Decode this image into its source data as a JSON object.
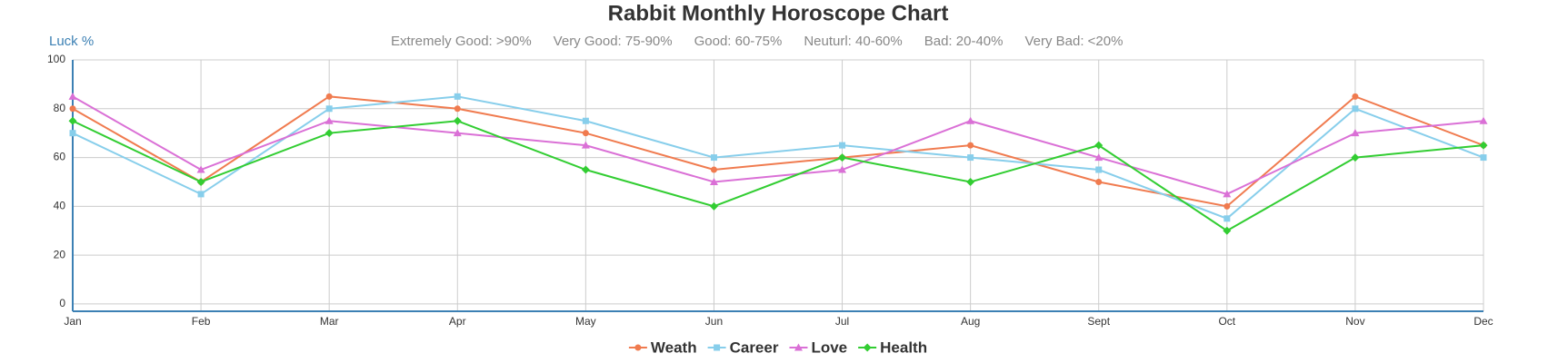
{
  "chart_data": {
    "type": "line",
    "title": "Rabbit Monthly Horoscope Chart",
    "y_label": "Luck %",
    "notes": [
      "Extremely Good: >90%",
      "Very Good: 75-90%",
      "Good: 60-75%",
      "Neuturl: 40-60%",
      "Bad: 20-40%",
      "Very Bad: <20%"
    ],
    "categories": [
      "Jan",
      "Feb",
      "Mar",
      "Apr",
      "May",
      "Jun",
      "Jul",
      "Aug",
      "Sept",
      "Oct",
      "Nov",
      "Dec"
    ],
    "series": [
      {
        "name": "Weath",
        "color": "#f07b4f",
        "marker": "circle",
        "values": [
          80,
          50,
          85,
          80,
          70,
          55,
          60,
          65,
          50,
          40,
          85,
          65
        ]
      },
      {
        "name": "Career",
        "color": "#87ceeb",
        "marker": "square",
        "values": [
          70,
          45,
          80,
          85,
          75,
          60,
          65,
          60,
          55,
          35,
          80,
          60
        ]
      },
      {
        "name": "Love",
        "color": "#da70d6",
        "marker": "triangle",
        "values": [
          85,
          55,
          75,
          70,
          65,
          50,
          55,
          75,
          60,
          45,
          70,
          75
        ]
      },
      {
        "name": "Health",
        "color": "#32cd32",
        "marker": "diamond",
        "values": [
          75,
          50,
          70,
          75,
          55,
          40,
          60,
          50,
          65,
          30,
          60,
          65
        ]
      }
    ],
    "ylim": [
      -3,
      100
    ],
    "yticks": [
      0,
      20,
      40,
      60,
      80,
      100
    ],
    "grid": true
  }
}
